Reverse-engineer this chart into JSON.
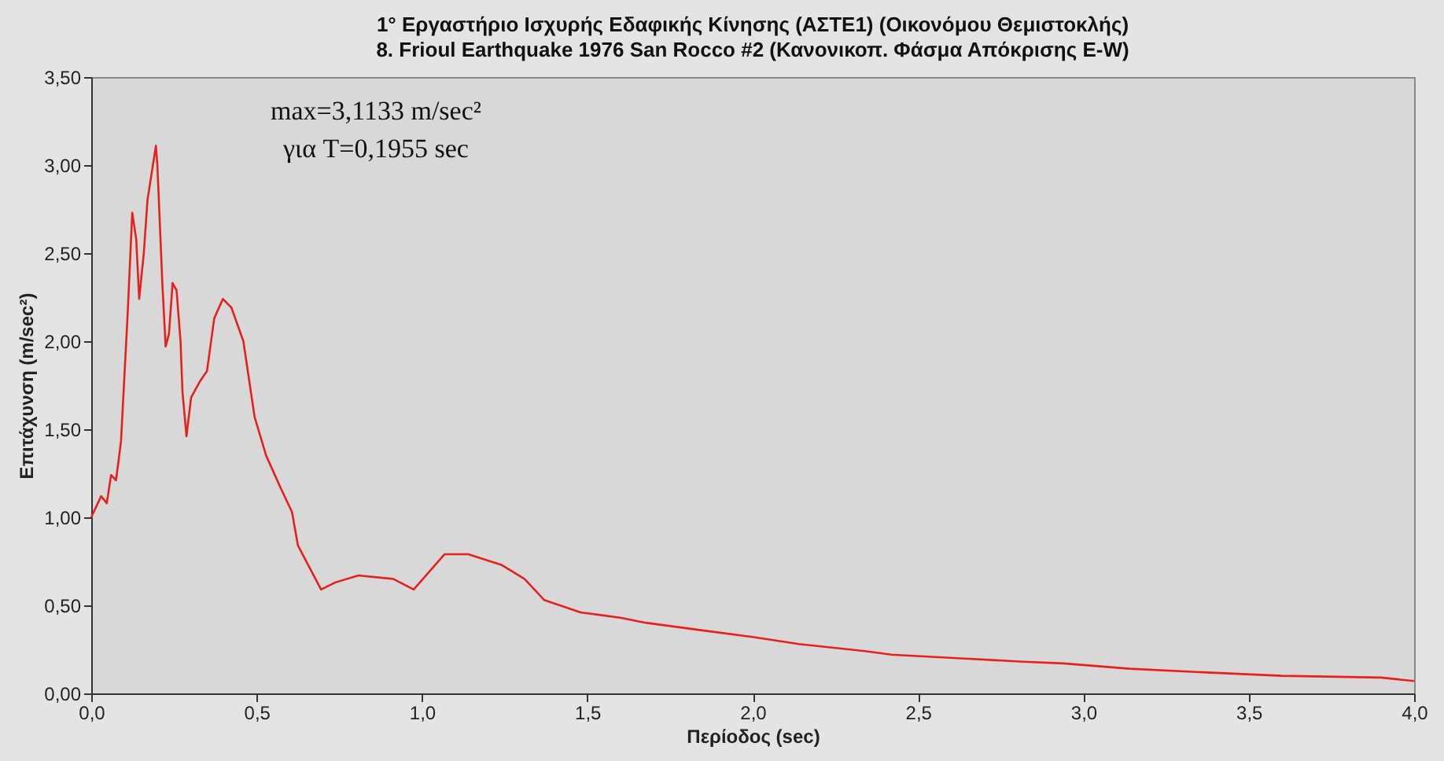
{
  "chart_data": {
    "type": "line",
    "title": "1° Εργαστήριο Ισχυρής Εδαφικής Κίνησης (ΑΣΤΕ1)       (Οικονόμου Θεμιστοκλής)",
    "subtitle": "8. Frioul Earthquake 1976 San Rocco #2 (Κανονικοπ. Φάσμα Απόκρισης E-W)",
    "xlabel": "Περίοδος (sec)",
    "ylabel": "Επιτάχυνση (m/sec²)",
    "annotations": [
      "max=3,1133 m/sec²",
      "για T=0,1955 sec"
    ],
    "series": [
      {
        "color": "#e8201c",
        "x": [
          0.0,
          0.03,
          0.047,
          0.06,
          0.075,
          0.09,
          0.11,
          0.124,
          0.136,
          0.145,
          0.159,
          0.17,
          0.1955,
          0.2,
          0.215,
          0.225,
          0.235,
          0.246,
          0.258,
          0.27,
          0.276,
          0.288,
          0.302,
          0.328,
          0.35,
          0.372,
          0.398,
          0.424,
          0.46,
          0.494,
          0.529,
          0.572,
          0.607,
          0.625,
          0.695,
          0.738,
          0.808,
          0.913,
          0.975,
          1.068,
          1.14,
          1.24,
          1.31,
          1.37,
          1.48,
          1.6,
          1.68,
          1.84,
          2.0,
          2.14,
          2.34,
          2.42,
          2.62,
          2.82,
          2.94,
          3.14,
          3.36,
          3.6,
          3.9,
          4.0
        ],
        "values": [
          1.0,
          1.12,
          1.08,
          1.24,
          1.21,
          1.43,
          2.15,
          2.73,
          2.58,
          2.24,
          2.5,
          2.8,
          3.11,
          3.0,
          2.33,
          1.97,
          2.04,
          2.33,
          2.29,
          2.0,
          1.71,
          1.46,
          1.68,
          1.77,
          1.83,
          2.13,
          2.24,
          2.19,
          2.0,
          1.57,
          1.35,
          1.17,
          1.03,
          0.84,
          0.59,
          0.63,
          0.67,
          0.65,
          0.59,
          0.79,
          0.79,
          0.73,
          0.65,
          0.53,
          0.46,
          0.43,
          0.4,
          0.36,
          0.32,
          0.28,
          0.24,
          0.22,
          0.2,
          0.18,
          0.17,
          0.14,
          0.12,
          0.1,
          0.09,
          0.07
        ]
      }
    ],
    "xlim": [
      0,
      4
    ],
    "xticks": [
      {
        "value": 0,
        "label": "0,0"
      },
      {
        "value": 0.5,
        "label": "0,5"
      },
      {
        "value": 1,
        "label": "1,0"
      },
      {
        "value": 1.5,
        "label": "1,5"
      },
      {
        "value": 2,
        "label": "2,0"
      },
      {
        "value": 2.5,
        "label": "2,5"
      },
      {
        "value": 3,
        "label": "3,0"
      },
      {
        "value": 3.5,
        "label": "3,5"
      },
      {
        "value": 4,
        "label": "4,0"
      }
    ],
    "ylim": [
      0,
      3.5
    ],
    "yticks": [
      {
        "value": 0,
        "label": "0,00"
      },
      {
        "value": 0.5,
        "label": "0,50"
      },
      {
        "value": 1,
        "label": "1,00"
      },
      {
        "value": 1.5,
        "label": "1,50"
      },
      {
        "value": 2,
        "label": "2,00"
      },
      {
        "value": 2.5,
        "label": "2,50"
      },
      {
        "value": 3,
        "label": "3,00"
      },
      {
        "value": 3.5,
        "label": "3,50"
      }
    ],
    "grid": false,
    "marker": "none",
    "line_style": "solid"
  }
}
